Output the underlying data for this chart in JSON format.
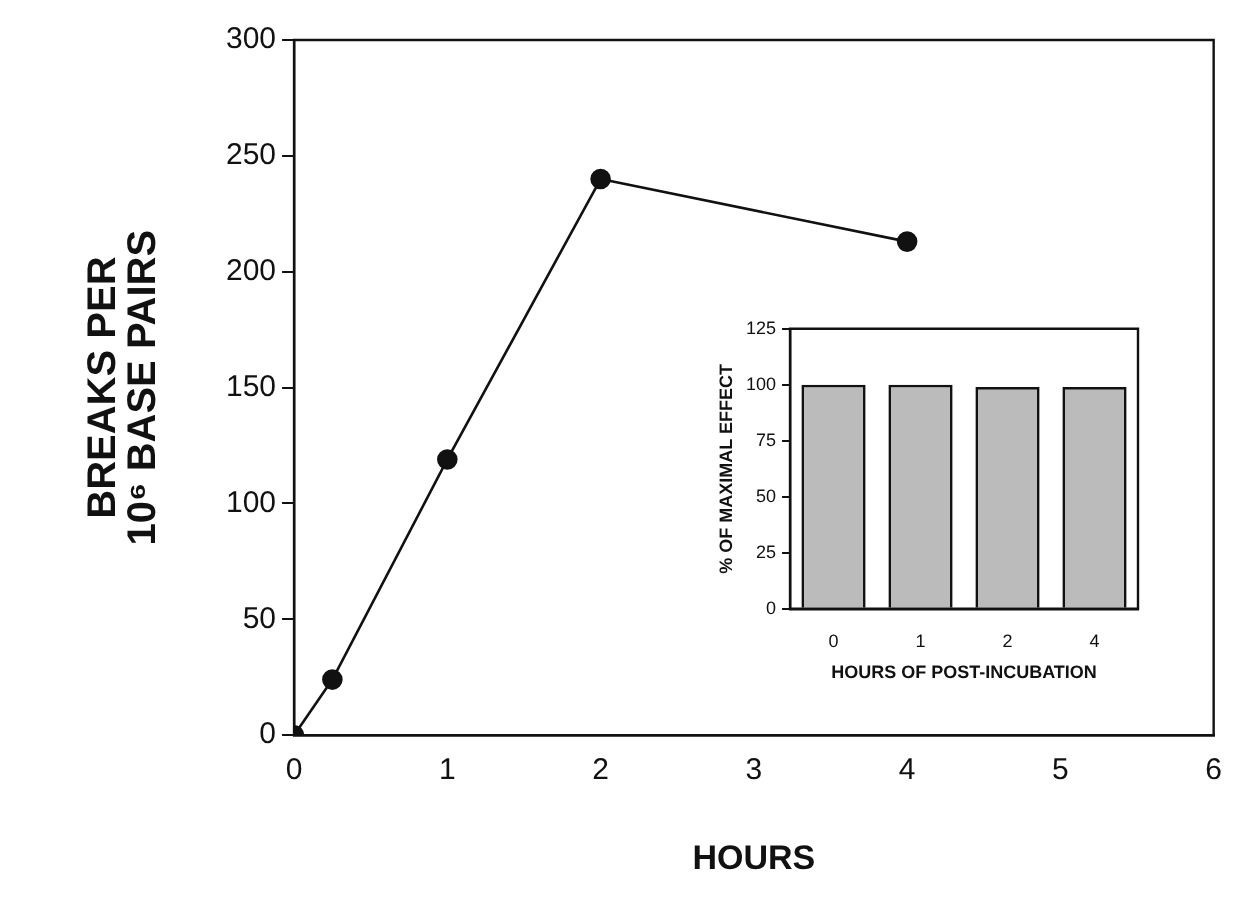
{
  "chart_data": [
    {
      "type": "line",
      "xlabel": "HOURS",
      "ylabel": "BREAKS PER\n10⁶ BASE PAIRS",
      "x": [
        0,
        0.25,
        1,
        2,
        4
      ],
      "series": [
        {
          "color": "#111111",
          "values": [
            0,
            24,
            119,
            240,
            213
          ]
        }
      ],
      "xlim": [
        0,
        6
      ],
      "xticks": [
        0,
        1,
        2,
        3,
        4,
        5,
        6
      ],
      "ylim": [
        0,
        300
      ],
      "yticks": [
        0,
        50,
        100,
        150,
        200,
        250,
        300
      ],
      "grid": false,
      "legend": false,
      "marker": "circle",
      "line_style": "solid"
    },
    {
      "type": "bar",
      "xlabel": "HOURS OF POST-INCUBATION",
      "ylabel": "% OF MAXIMAL EFFECT",
      "categories": [
        "0",
        "1",
        "2",
        "4"
      ],
      "values": [
        100,
        100,
        99,
        99
      ],
      "color": "#bbbbbb",
      "ylim": [
        0,
        125
      ],
      "yticks": [
        0,
        25,
        50,
        75,
        100,
        125
      ],
      "grid": false,
      "legend": false
    }
  ]
}
